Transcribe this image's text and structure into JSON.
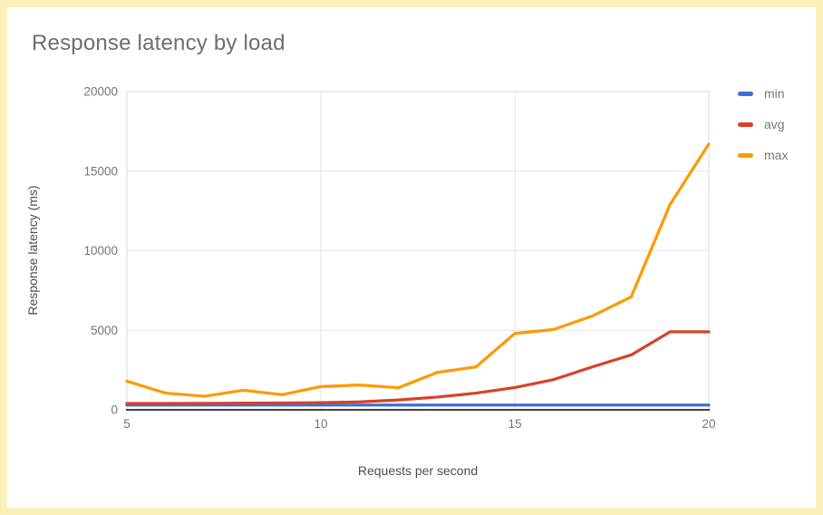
{
  "page": {
    "frame_color": "#faf0ba",
    "background": "#ffffff"
  },
  "chart_data": {
    "type": "line",
    "title": "Response latency by load",
    "xlabel": "Requests per second",
    "ylabel": "Response latency (ms)",
    "x": [
      5,
      6,
      7,
      8,
      9,
      10,
      11,
      12,
      13,
      14,
      15,
      16,
      17,
      18,
      19,
      20
    ],
    "xlim": [
      5,
      20
    ],
    "ylim": [
      0,
      20000
    ],
    "x_ticks": [
      5,
      10,
      15,
      20
    ],
    "y_ticks": [
      0,
      5000,
      10000,
      15000,
      20000
    ],
    "grid": true,
    "legend_position": "right",
    "series": [
      {
        "name": "min",
        "color": "#3e70d6",
        "values": [
          300,
          300,
          300,
          300,
          300,
          300,
          300,
          300,
          300,
          300,
          300,
          300,
          300,
          300,
          300,
          300
        ]
      },
      {
        "name": "avg",
        "color": "#d9402a",
        "values": [
          400,
          400,
          410,
          420,
          430,
          450,
          500,
          620,
          800,
          1050,
          1400,
          1900,
          2700,
          3450,
          4900,
          4900
        ]
      },
      {
        "name": "max",
        "color": "#ff9900",
        "values": [
          1800,
          1050,
          850,
          1230,
          950,
          1460,
          1560,
          1390,
          2350,
          2700,
          4800,
          5050,
          5900,
          7100,
          12900,
          16700
        ]
      }
    ],
    "style": {
      "gridline_color": "#e3e3e3",
      "plot_border_color": "#d9d9d9",
      "baseline_color": "#424242",
      "tick_label_color": "#757575",
      "line_width": 3.2
    }
  }
}
